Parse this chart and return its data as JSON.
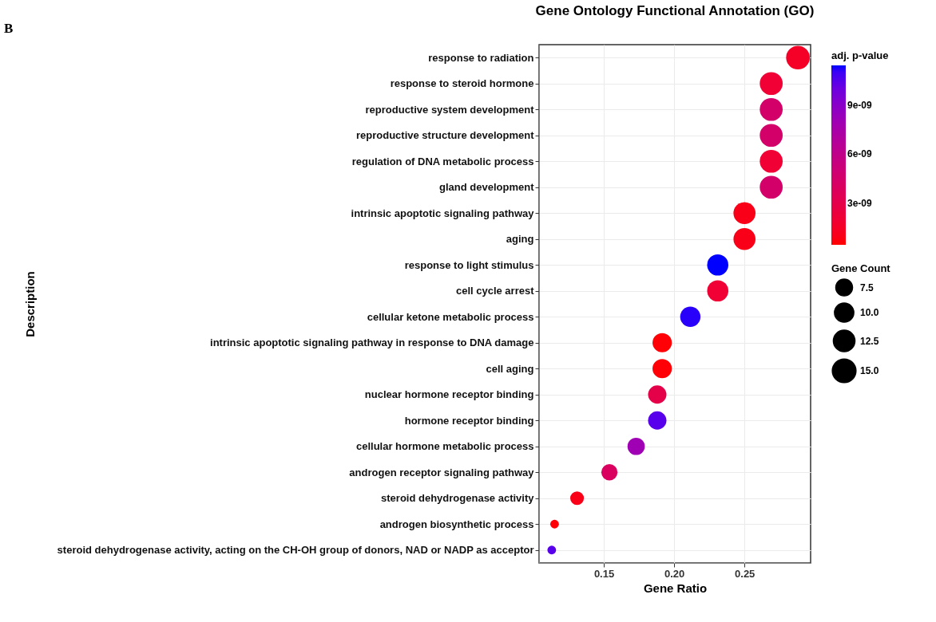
{
  "chart_data": {
    "type": "scatter",
    "title": "Gene Ontology Functional Annotation (GO)",
    "xlabel": "Gene Ratio",
    "ylabel": "Description",
    "clabel": "adj. p-value",
    "legend_title": "Gene Count",
    "annotations": [
      "B"
    ],
    "categories": [
      "response to radiation",
      "response to steroid hormone",
      "reproductive system development",
      "reproductive structure development",
      "regulation of DNA metabolic process",
      "gland development",
      "intrinsic apoptotic signaling pathway",
      "aging",
      "response to light stimulus",
      "cell cycle arrest",
      "cellular ketone metabolic process",
      "intrinsic apoptotic signaling pathway in response to DNA damage",
      "cell aging",
      "nuclear hormone receptor binding",
      "hormone receptor binding",
      "cellular hormone metabolic process",
      "androgen receptor signaling pathway",
      "steroid dehydrogenase activity",
      "androgen biosynthetic process",
      "steroid dehydrogenase activity, acting on the CH-OH group of donors, NAD or NADP as acceptor"
    ],
    "values": [
      0.288,
      0.269,
      0.269,
      0.269,
      0.269,
      0.269,
      0.25,
      0.25,
      0.231,
      0.231,
      0.2115,
      0.1915,
      0.1915,
      0.188,
      0.188,
      0.173,
      0.154,
      0.131,
      0.115,
      0.113
    ],
    "sizes": [
      15,
      14,
      14,
      14,
      14,
      14,
      13,
      13,
      12,
      12,
      11,
      10,
      10,
      9,
      9,
      8,
      7,
      5,
      2,
      2
    ],
    "size_legend": [
      {
        "value": 7.5,
        "label": "7.5"
      },
      {
        "value": 10,
        "label": "10.0"
      },
      {
        "value": 12.5,
        "label": "12.5"
      },
      {
        "value": 15,
        "label": "15.0"
      }
    ],
    "cvalues": [
      1.5e-09,
      2e-09,
      4.5e-09,
      4.5e-09,
      2e-09,
      4.5e-09,
      1e-09,
      1e-09,
      1.14e-08,
      2e-09,
      1.12e-08,
      6e-10,
      6e-10,
      3e-09,
      1.05e-08,
      8e-09,
      4e-09,
      1e-09,
      6e-10,
      1.05e-08
    ],
    "clim": [
      5e-10,
      1.14e-08
    ],
    "cticks": [
      {
        "value": 3e-09,
        "label": "3e-09"
      },
      {
        "value": 6e-09,
        "label": "6e-09"
      },
      {
        "value": 9e-09,
        "label": "9e-09"
      }
    ],
    "xlim": [
      0.104,
      0.297
    ],
    "xticks": [
      {
        "value": 0.15,
        "label": "0.15"
      },
      {
        "value": 0.2,
        "label": "0.20"
      },
      {
        "value": 0.25,
        "label": "0.25"
      }
    ],
    "orientation": "horizontal",
    "grid": true,
    "marker": "circle"
  }
}
